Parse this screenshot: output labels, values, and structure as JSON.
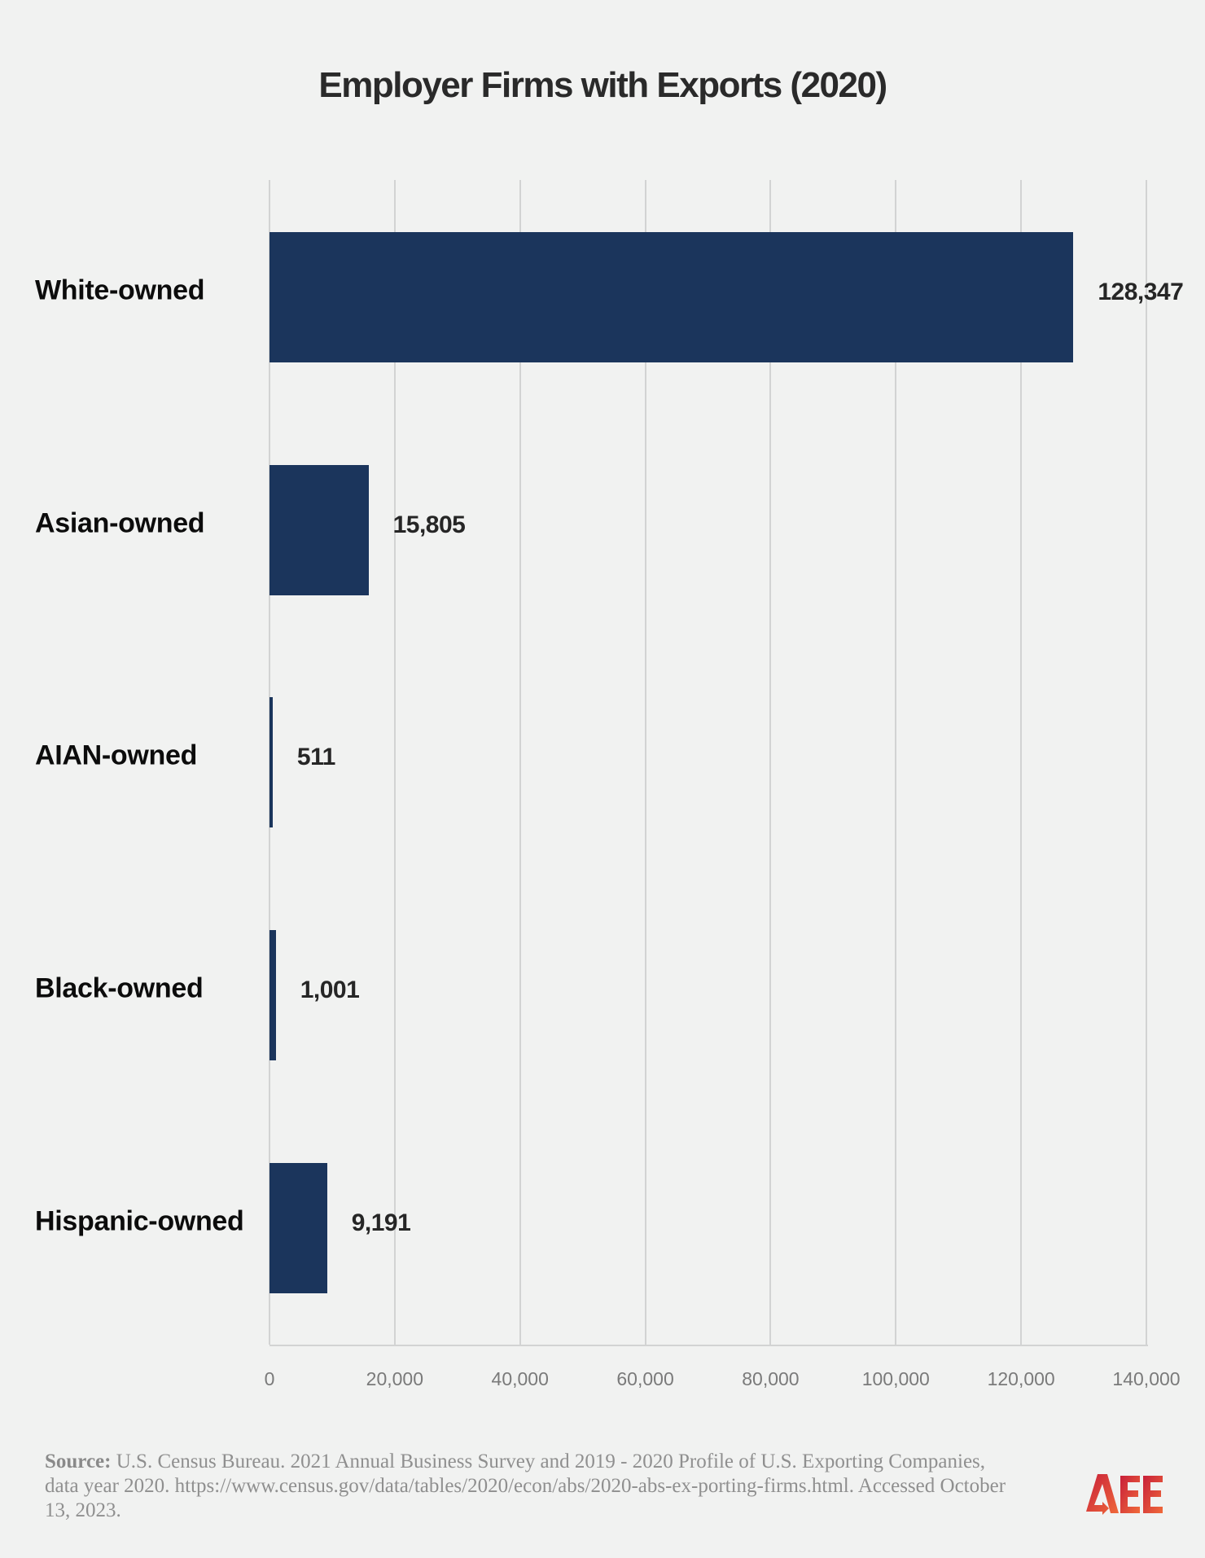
{
  "chart_data": {
    "type": "bar",
    "orientation": "horizontal",
    "title": "Employer Firms with Exports (2020)",
    "xlabel": "",
    "ylabel": "",
    "categories": [
      "White-owned",
      "Asian-owned",
      "AIAN-owned",
      "Black-owned",
      "Hispanic-owned"
    ],
    "values": [
      128347,
      15805,
      511,
      1001,
      9191
    ],
    "value_labels": [
      "128,347",
      "15,805",
      "511",
      "1,001",
      "9,191"
    ],
    "xlim": [
      0,
      140000
    ],
    "x_ticks": [
      0,
      20000,
      40000,
      60000,
      80000,
      100000,
      120000,
      140000
    ],
    "x_tick_labels": [
      "0",
      "20,000",
      "40,000",
      "60,000",
      "80,000",
      "100,000",
      "120,000",
      "140,000"
    ],
    "grid": true,
    "legend": null,
    "bar_color": "#1b355c"
  },
  "source": {
    "prefix": "Source:",
    "text": " U.S. Census Bureau. 2021 Annual Business Survey and 2019 - 2020 Profile of U.S. Exporting Companies, data year 2020. https://www.census.gov/data/tables/2020/econ/abs/2020-abs-ex-porting-firms.html. Accessed October 13, 2023."
  },
  "logo": {
    "text": "AEE",
    "colors": [
      "#c8203a",
      "#f06a3a"
    ]
  }
}
